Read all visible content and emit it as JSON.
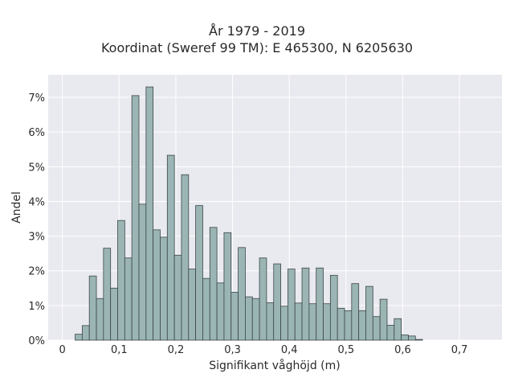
{
  "chart_data": {
    "type": "bar",
    "title_line1": "År 1979 - 2019",
    "title_line2": "Koordinat (Sweref 99 TM): E 465300, N 6205630",
    "xlabel": "Signifikant våghöjd (m)",
    "ylabel": "Andel",
    "xlim": [
      -0.025,
      0.775
    ],
    "ylim": [
      0,
      7.65
    ],
    "x_ticks": [
      0,
      0.1,
      0.2,
      0.3,
      0.4,
      0.5,
      0.6,
      0.7
    ],
    "x_tick_labels": [
      "0",
      "0,1",
      "0,2",
      "0,3",
      "0,4",
      "0,5",
      "0,6",
      "0,7"
    ],
    "y_ticks": [
      0,
      1,
      2,
      3,
      4,
      5,
      6,
      7
    ],
    "y_tick_labels": [
      "0%",
      "1%",
      "2%",
      "3%",
      "4%",
      "5%",
      "6%",
      "7%"
    ],
    "grid": true,
    "bar_color": "#9bb5b5",
    "bar_edge_color": "#3c4646",
    "plot_bg": "#e9e9f0",
    "bin_width": 0.0125,
    "bin_starts": [
      0.01,
      0.0225,
      0.035,
      0.0475,
      0.06,
      0.0725,
      0.085,
      0.0975,
      0.11,
      0.1225,
      0.135,
      0.1475,
      0.16,
      0.1725,
      0.185,
      0.1975,
      0.21,
      0.2225,
      0.235,
      0.2475,
      0.26,
      0.2725,
      0.285,
      0.2975,
      0.31,
      0.3225,
      0.335,
      0.3475,
      0.36,
      0.3725,
      0.385,
      0.3975,
      0.41,
      0.4225,
      0.435,
      0.4475,
      0.46,
      0.4725,
      0.485,
      0.4975,
      0.51,
      0.5225,
      0.535,
      0.5475,
      0.56,
      0.5725,
      0.585,
      0.5975,
      0.61,
      0.6225,
      0.635,
      0.6475,
      0.66,
      0.6725,
      0.685,
      0.6975,
      0.71,
      0.7225,
      0.735
    ],
    "values": [
      0,
      0.17,
      0.42,
      1.85,
      1.2,
      2.65,
      1.5,
      3.45,
      2.37,
      7.05,
      3.92,
      7.3,
      3.18,
      2.97,
      5.33,
      2.45,
      4.77,
      2.05,
      3.88,
      1.78,
      3.25,
      1.65,
      3.1,
      1.38,
      2.67,
      1.25,
      1.2,
      2.37,
      1.08,
      2.2,
      0.98,
      2.05,
      1.07,
      2.08,
      1.05,
      2.08,
      1.05,
      1.87,
      0.92,
      0.85,
      1.63,
      0.85,
      1.55,
      0.68,
      1.18,
      0.43,
      0.62,
      0.15,
      0.12,
      0.02,
      0,
      0,
      0,
      0,
      0,
      0,
      0,
      0,
      0
    ]
  }
}
